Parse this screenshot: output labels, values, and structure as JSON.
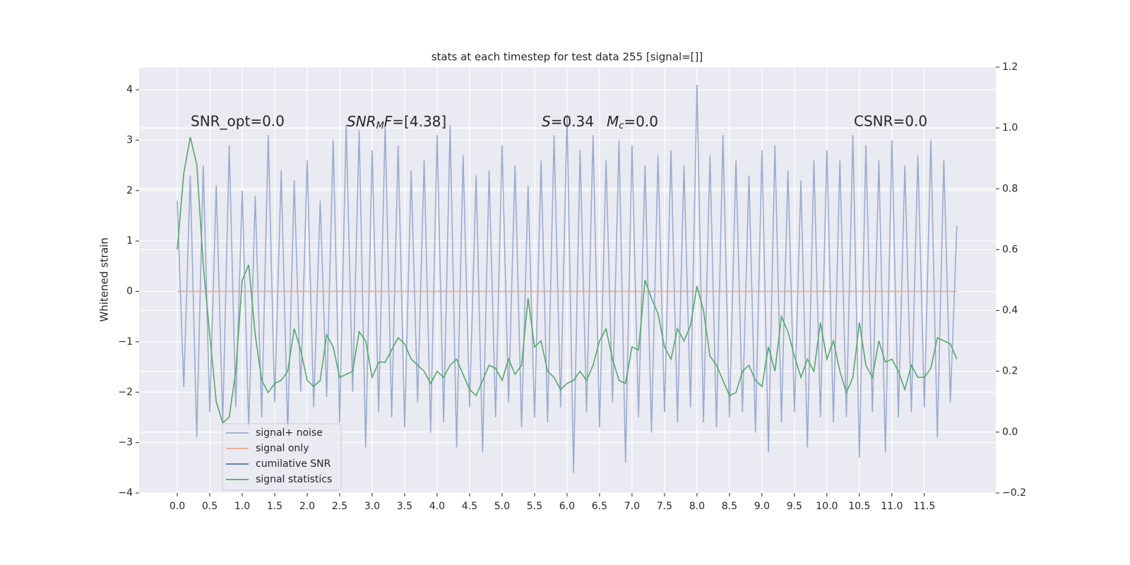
{
  "chart_data": {
    "type": "line",
    "title": "stats at each timestep for test data 255 [signal=[]]",
    "ylabel": "Whitened strain",
    "annotations": [
      [
        "SNR_opt=0.0"
      ],
      [
        "SNR",
        "M",
        "F",
        "=[4.38]"
      ],
      [
        "S",
        "=0.34"
      ],
      [
        "M",
        "c",
        "=0.0"
      ],
      [
        "CSNR=0.0"
      ]
    ],
    "x": [
      0,
      0.1,
      0.2,
      0.3,
      0.4,
      0.5,
      0.6,
      0.7,
      0.8,
      0.9,
      1,
      1.1,
      1.2,
      1.3,
      1.4,
      1.5,
      1.6,
      1.7,
      1.8,
      1.9,
      2,
      2.1,
      2.2,
      2.3,
      2.4,
      2.5,
      2.6,
      2.7,
      2.8,
      2.9,
      3,
      3.1,
      3.2,
      3.3,
      3.4,
      3.5,
      3.6,
      3.7,
      3.8,
      3.9,
      4,
      4.1,
      4.2,
      4.3,
      4.4,
      4.5,
      4.6,
      4.7,
      4.8,
      4.9,
      5,
      5.1,
      5.2,
      5.3,
      5.4,
      5.5,
      5.6,
      5.7,
      5.8,
      5.9,
      6,
      6.1,
      6.2,
      6.3,
      6.4,
      6.5,
      6.6,
      6.7,
      6.8,
      6.9,
      7,
      7.1,
      7.2,
      7.3,
      7.4,
      7.5,
      7.6,
      7.7,
      7.8,
      7.9,
      8,
      8.1,
      8.2,
      8.3,
      8.4,
      8.5,
      8.6,
      8.7,
      8.8,
      8.9,
      9,
      9.1,
      9.2,
      9.3,
      9.4,
      9.5,
      9.6,
      9.7,
      9.8,
      9.9,
      10,
      10.1,
      10.2,
      10.3,
      10.4,
      10.5,
      10.6,
      10.7,
      10.8,
      10.9,
      11,
      11.1,
      11.2,
      11.3,
      11.4,
      11.5,
      11.6,
      11.7,
      11.8,
      11.9,
      12
    ],
    "series": [
      {
        "name": "signal+ noise",
        "color": "#9aabd0",
        "values": [
          1.8,
          -1.9,
          2.3,
          -2.9,
          2.5,
          -2.4,
          2.1,
          -2.6,
          2.9,
          -2.3,
          2.0,
          -2.7,
          1.9,
          -2.5,
          3.1,
          -2.2,
          2.4,
          -2.8,
          2.2,
          -2.0,
          2.6,
          -2.3,
          1.8,
          -2.1,
          3.0,
          -2.6,
          3.3,
          -2.0,
          3.2,
          -3.1,
          2.8,
          -2.4,
          3.3,
          -2.5,
          2.9,
          -2.7,
          2.4,
          -2.2,
          2.6,
          -2.8,
          3.1,
          -2.6,
          3.3,
          -3.1,
          2.7,
          -2.3,
          2.3,
          -3.2,
          2.4,
          -2.5,
          2.9,
          -2.2,
          2.5,
          -2.7,
          2.1,
          -2.5,
          2.6,
          -2.6,
          3.1,
          -2.3,
          3.5,
          -3.6,
          2.8,
          -2.4,
          3.1,
          -2.7,
          2.6,
          -2.2,
          3.0,
          -3.4,
          2.9,
          -2.5,
          2.5,
          -2.8,
          2.7,
          -2.4,
          2.8,
          -2.6,
          2.5,
          -2.3,
          4.1,
          -2.6,
          2.7,
          -2.7,
          3.1,
          -2.5,
          2.6,
          -2.4,
          2.3,
          -2.8,
          2.8,
          -3.2,
          2.9,
          -2.6,
          2.4,
          -2.4,
          2.2,
          -3.1,
          2.6,
          -2.5,
          2.8,
          -2.6,
          2.6,
          -2.5,
          3.1,
          -3.3,
          2.9,
          -2.4,
          2.6,
          -3.2,
          3.0,
          -2.5,
          2.5,
          -2.4,
          2.7,
          -2.3,
          3.0,
          -2.9,
          2.6,
          -2.2,
          1.3
        ]
      },
      {
        "name": "signal only",
        "color": "#e8a988",
        "values": [
          0,
          0,
          0,
          0,
          0,
          0,
          0,
          0,
          0,
          0,
          0,
          0,
          0,
          0,
          0,
          0,
          0,
          0,
          0,
          0,
          0,
          0,
          0,
          0,
          0,
          0,
          0,
          0,
          0,
          0,
          0,
          0,
          0,
          0,
          0,
          0,
          0,
          0,
          0,
          0,
          0,
          0,
          0,
          0,
          0,
          0,
          0,
          0,
          0,
          0,
          0,
          0,
          0,
          0,
          0,
          0,
          0,
          0,
          0,
          0,
          0,
          0,
          0,
          0,
          0,
          0,
          0,
          0,
          0,
          0,
          0,
          0,
          0,
          0,
          0,
          0,
          0,
          0,
          0,
          0,
          0,
          0,
          0,
          0,
          0,
          0,
          0,
          0,
          0,
          0,
          0,
          0,
          0,
          0,
          0,
          0,
          0,
          0,
          0,
          0,
          0,
          0,
          0,
          0,
          0,
          0,
          0,
          0,
          0,
          0,
          0,
          0,
          0,
          0,
          0,
          0,
          0,
          0,
          0,
          0,
          0
        ]
      },
      {
        "name": "cumilative SNR",
        "color": "#4c72b0"
      },
      {
        "name": "signal statistics",
        "color": "#55a868",
        "axis": "y2",
        "values": [
          0.6,
          0.85,
          0.97,
          0.88,
          0.55,
          0.32,
          0.1,
          0.03,
          0.05,
          0.2,
          0.5,
          0.55,
          0.32,
          0.17,
          0.13,
          0.16,
          0.17,
          0.2,
          0.34,
          0.27,
          0.17,
          0.15,
          0.17,
          0.32,
          0.28,
          0.18,
          0.19,
          0.2,
          0.33,
          0.3,
          0.18,
          0.23,
          0.23,
          0.27,
          0.31,
          0.29,
          0.24,
          0.22,
          0.2,
          0.16,
          0.2,
          0.18,
          0.22,
          0.24,
          0.19,
          0.14,
          0.12,
          0.17,
          0.22,
          0.21,
          0.17,
          0.24,
          0.19,
          0.22,
          0.44,
          0.28,
          0.3,
          0.2,
          0.18,
          0.14,
          0.16,
          0.17,
          0.2,
          0.17,
          0.22,
          0.3,
          0.34,
          0.24,
          0.17,
          0.16,
          0.28,
          0.27,
          0.5,
          0.44,
          0.39,
          0.28,
          0.24,
          0.34,
          0.3,
          0.35,
          0.48,
          0.4,
          0.25,
          0.22,
          0.17,
          0.12,
          0.13,
          0.2,
          0.22,
          0.17,
          0.15,
          0.28,
          0.2,
          0.38,
          0.33,
          0.25,
          0.18,
          0.24,
          0.2,
          0.36,
          0.24,
          0.3,
          0.2,
          0.13,
          0.18,
          0.36,
          0.22,
          0.18,
          0.3,
          0.23,
          0.24,
          0.2,
          0.14,
          0.22,
          0.18,
          0.18,
          0.21,
          0.31,
          0.3,
          0.29,
          0.24
        ]
      }
    ],
    "xlim": [
      -0.587,
      12.6
    ],
    "xticks": [
      {
        "value": 0,
        "label": "0.0"
      },
      {
        "value": 0.5,
        "label": "0.5"
      },
      {
        "value": 1,
        "label": "1.0"
      },
      {
        "value": 1.5,
        "label": "1.5"
      },
      {
        "value": 2,
        "label": "2.0"
      },
      {
        "value": 2.5,
        "label": "2.5"
      },
      {
        "value": 3,
        "label": "3.0"
      },
      {
        "value": 3.5,
        "label": "3.5"
      },
      {
        "value": 4,
        "label": "4.0"
      },
      {
        "value": 4.5,
        "label": "4.5"
      },
      {
        "value": 5,
        "label": "5.0"
      },
      {
        "value": 5.5,
        "label": "5.5"
      },
      {
        "value": 6,
        "label": "6.0"
      },
      {
        "value": 6.5,
        "label": "6.5"
      },
      {
        "value": 7,
        "label": "7.0"
      },
      {
        "value": 7.5,
        "label": "7.5"
      },
      {
        "value": 8,
        "label": "8.0"
      },
      {
        "value": 8.5,
        "label": "8.5"
      },
      {
        "value": 9,
        "label": "9.0"
      },
      {
        "value": 9.5,
        "label": "9.5"
      },
      {
        "value": 10,
        "label": "10.0"
      },
      {
        "value": 10.5,
        "label": "10.5"
      },
      {
        "value": 11,
        "label": "11.0"
      },
      {
        "value": 11.5,
        "label": "11.5"
      }
    ],
    "ylim": [
      -4,
      4.45
    ],
    "yticks": [
      {
        "value": -4,
        "label": "−4"
      },
      {
        "value": -3,
        "label": "−3"
      },
      {
        "value": -2,
        "label": "−2"
      },
      {
        "value": -1,
        "label": "−1"
      },
      0,
      1,
      2,
      3,
      4
    ],
    "y2lim": [
      -0.2,
      1.2
    ],
    "y2ticks": [
      {
        "value": -0.2,
        "label": "−0.2"
      },
      {
        "value": 0,
        "label": "0.0"
      },
      0.2,
      0.4,
      0.6,
      0.8,
      {
        "value": 1,
        "label": "1.0"
      },
      1.2
    ],
    "grid": true,
    "legend": "lower left"
  }
}
